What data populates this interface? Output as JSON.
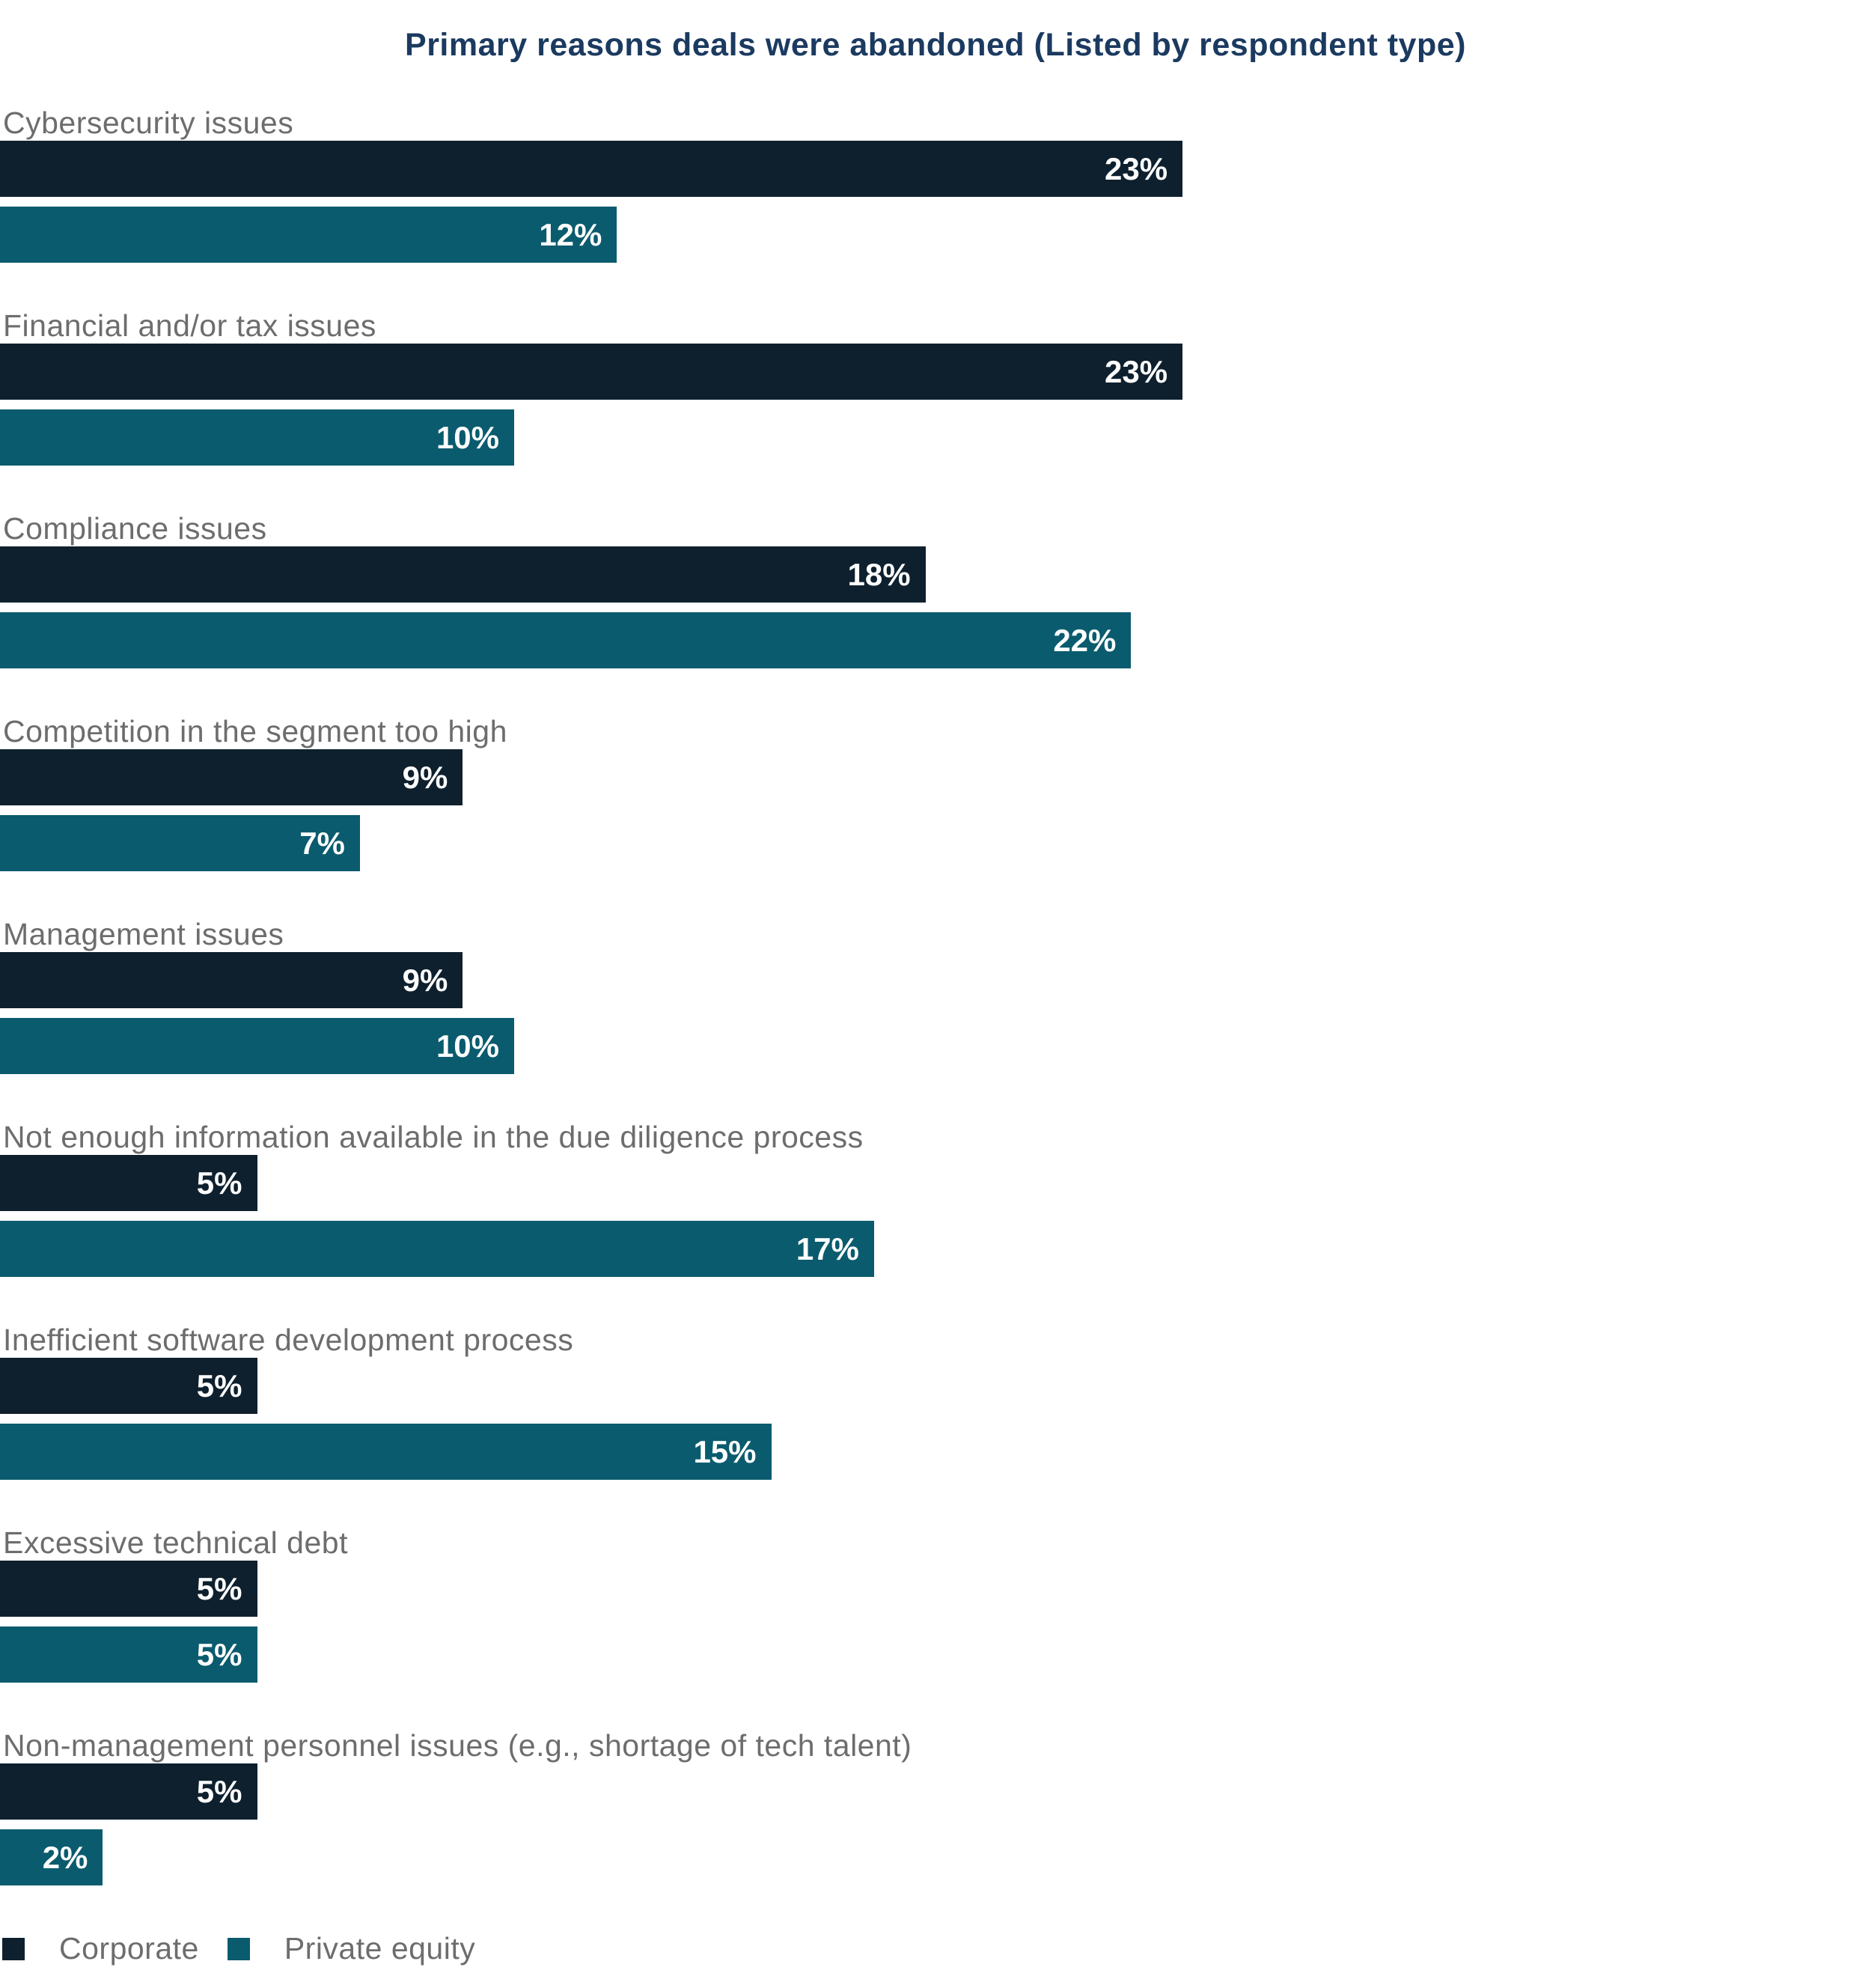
{
  "title": "Primary reasons deals were abandoned (Listed by respondent type)",
  "legend": {
    "items": [
      {
        "label": "Corporate",
        "color": "#0e202e"
      },
      {
        "label": "Private equity",
        "color": "#0a5b6e"
      }
    ]
  },
  "colors": {
    "corporate_bar": "#0e202e",
    "private_equity_bar": "#0a5b6e",
    "title_text": "#1b3a60",
    "category_label_text": "#6d6d6d",
    "value_label_text": "#ffffff",
    "background": "#ffffff"
  },
  "chart_data": {
    "type": "bar",
    "orientation": "horizontal",
    "title": "Primary reasons deals were abandoned (Listed by respondent type)",
    "value_unit": "%",
    "xlim": [
      0,
      23
    ],
    "grid": false,
    "legend_position": "bottom-left",
    "categories": [
      "Cybersecurity issues",
      "Financial and/or tax issues",
      "Compliance issues",
      "Competition in the segment too high",
      "Management issues",
      "Not enough information available in the due diligence process",
      "Inefficient software development process",
      "Excessive technical debt",
      "Non-management personnel issues (e.g., shortage of tech talent)"
    ],
    "series": [
      {
        "name": "Corporate",
        "color": "#0e202e",
        "values": [
          23,
          23,
          18,
          9,
          9,
          5,
          5,
          5,
          5
        ]
      },
      {
        "name": "Private equity",
        "color": "#0a5b6e",
        "values": [
          12,
          10,
          22,
          7,
          10,
          17,
          15,
          5,
          2
        ]
      }
    ],
    "value_labels": [
      [
        "23%",
        "12%"
      ],
      [
        "23%",
        "10%"
      ],
      [
        "18%",
        "22%"
      ],
      [
        "9%",
        "7%"
      ],
      [
        "9%",
        "10%"
      ],
      [
        "5%",
        "17%"
      ],
      [
        "5%",
        "15%"
      ],
      [
        "5%",
        "5%"
      ],
      [
        "5%",
        "2%"
      ]
    ]
  }
}
